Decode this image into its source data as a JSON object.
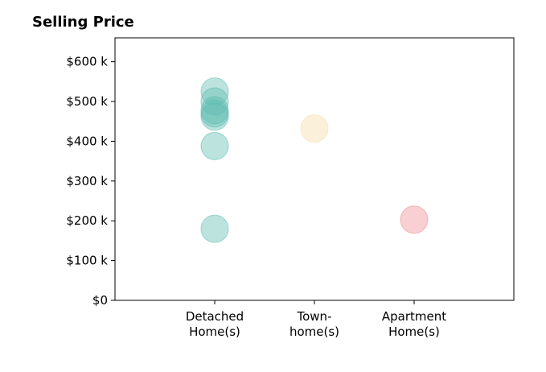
{
  "chart_data": {
    "type": "scatter",
    "title": "Selling Price",
    "xlabel": "",
    "ylabel": "",
    "categories": [
      "Detached\nHome(s)",
      "Town-\nhome(s)",
      "Apartment\nHome(s)"
    ],
    "xlim": [
      0,
      4
    ],
    "ylim": [
      0,
      660000
    ],
    "yticks": [
      0,
      100000,
      200000,
      300000,
      400000,
      500000,
      600000
    ],
    "ytick_labels": [
      "$0",
      "$100 k",
      "$200 k",
      "$300 k",
      "$400 k",
      "$500 k",
      "$600 k"
    ],
    "grid": false,
    "series": [
      {
        "category_index": 0,
        "color": "#5fbcb0",
        "values": [
          525000,
          500000,
          478000,
          470000,
          462000,
          388000,
          180000
        ]
      },
      {
        "category_index": 1,
        "color": "#f6dca5",
        "values": [
          432000
        ]
      },
      {
        "category_index": 2,
        "color": "#ef8c94",
        "values": [
          203000
        ]
      }
    ]
  }
}
